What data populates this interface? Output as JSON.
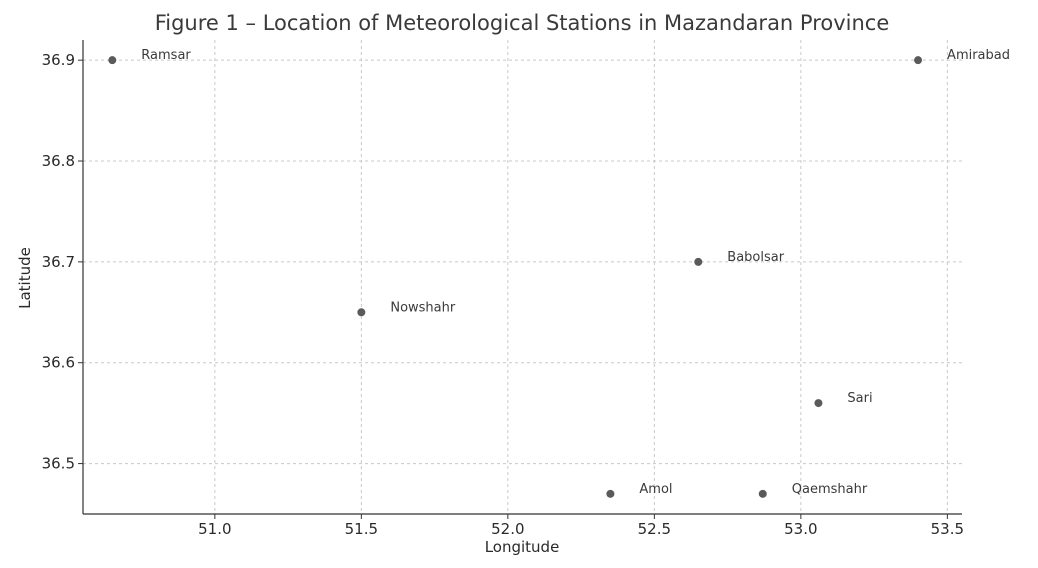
{
  "chart_data": {
    "type": "scatter",
    "title": "Figure 1 – Location of Meteorological Stations in Mazandaran Province",
    "xlabel": "Longitude",
    "ylabel": "Latitude",
    "xlim": [
      50.55,
      53.55
    ],
    "ylim": [
      36.45,
      36.92
    ],
    "xticks": [
      51.0,
      51.5,
      52.0,
      52.5,
      53.0,
      53.5
    ],
    "xtick_labels": [
      "51.0",
      "51.5",
      "52.0",
      "52.5",
      "53.0",
      "53.5"
    ],
    "yticks": [
      36.5,
      36.6,
      36.7,
      36.8,
      36.9
    ],
    "ytick_labels": [
      "36.5",
      "36.6",
      "36.7",
      "36.8",
      "36.9"
    ],
    "grid": true,
    "marker_color": "#5a5a5a",
    "points": [
      {
        "label": "Ramsar",
        "x": 50.65,
        "y": 36.9
      },
      {
        "label": "Amirabad",
        "x": 53.4,
        "y": 36.9
      },
      {
        "label": "Babolsar",
        "x": 52.65,
        "y": 36.7
      },
      {
        "label": "Nowshahr",
        "x": 51.5,
        "y": 36.65
      },
      {
        "label": "Sari",
        "x": 53.06,
        "y": 36.56
      },
      {
        "label": "Amol",
        "x": 52.35,
        "y": 36.47
      },
      {
        "label": "Qaemshahr",
        "x": 52.87,
        "y": 36.47
      }
    ]
  }
}
